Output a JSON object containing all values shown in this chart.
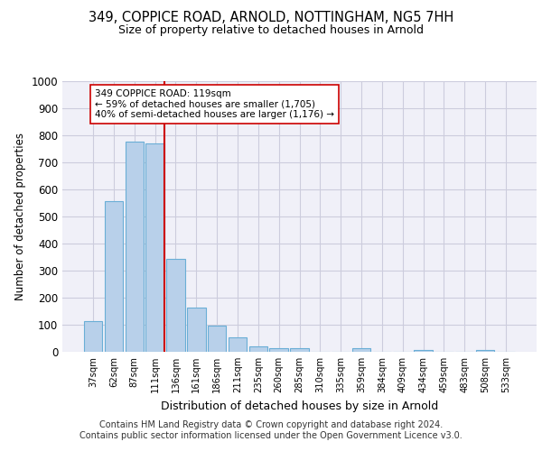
{
  "title1": "349, COPPICE ROAD, ARNOLD, NOTTINGHAM, NG5 7HH",
  "title2": "Size of property relative to detached houses in Arnold",
  "xlabel": "Distribution of detached houses by size in Arnold",
  "ylabel": "Number of detached properties",
  "categories": [
    "37sqm",
    "62sqm",
    "87sqm",
    "111sqm",
    "136sqm",
    "161sqm",
    "186sqm",
    "211sqm",
    "235sqm",
    "260sqm",
    "285sqm",
    "310sqm",
    "335sqm",
    "359sqm",
    "384sqm",
    "409sqm",
    "434sqm",
    "459sqm",
    "483sqm",
    "508sqm",
    "533sqm"
  ],
  "values": [
    112,
    558,
    778,
    770,
    343,
    165,
    98,
    53,
    20,
    15,
    15,
    0,
    0,
    12,
    0,
    0,
    8,
    0,
    0,
    8,
    0
  ],
  "bar_color": "#b8d0ea",
  "bar_edge_color": "#6aaed6",
  "vline_color": "#cc0000",
  "annotation_text": "349 COPPICE ROAD: 119sqm\n← 59% of detached houses are smaller (1,705)\n40% of semi-detached houses are larger (1,176) →",
  "annotation_box_color": "#ffffff",
  "annotation_edge_color": "#cc0000",
  "ylim": [
    0,
    1000
  ],
  "yticks": [
    0,
    100,
    200,
    300,
    400,
    500,
    600,
    700,
    800,
    900,
    1000
  ],
  "footer1": "Contains HM Land Registry data © Crown copyright and database right 2024.",
  "footer2": "Contains public sector information licensed under the Open Government Licence v3.0.",
  "bg_color": "#f0f0f8",
  "grid_color": "#ccccdd"
}
